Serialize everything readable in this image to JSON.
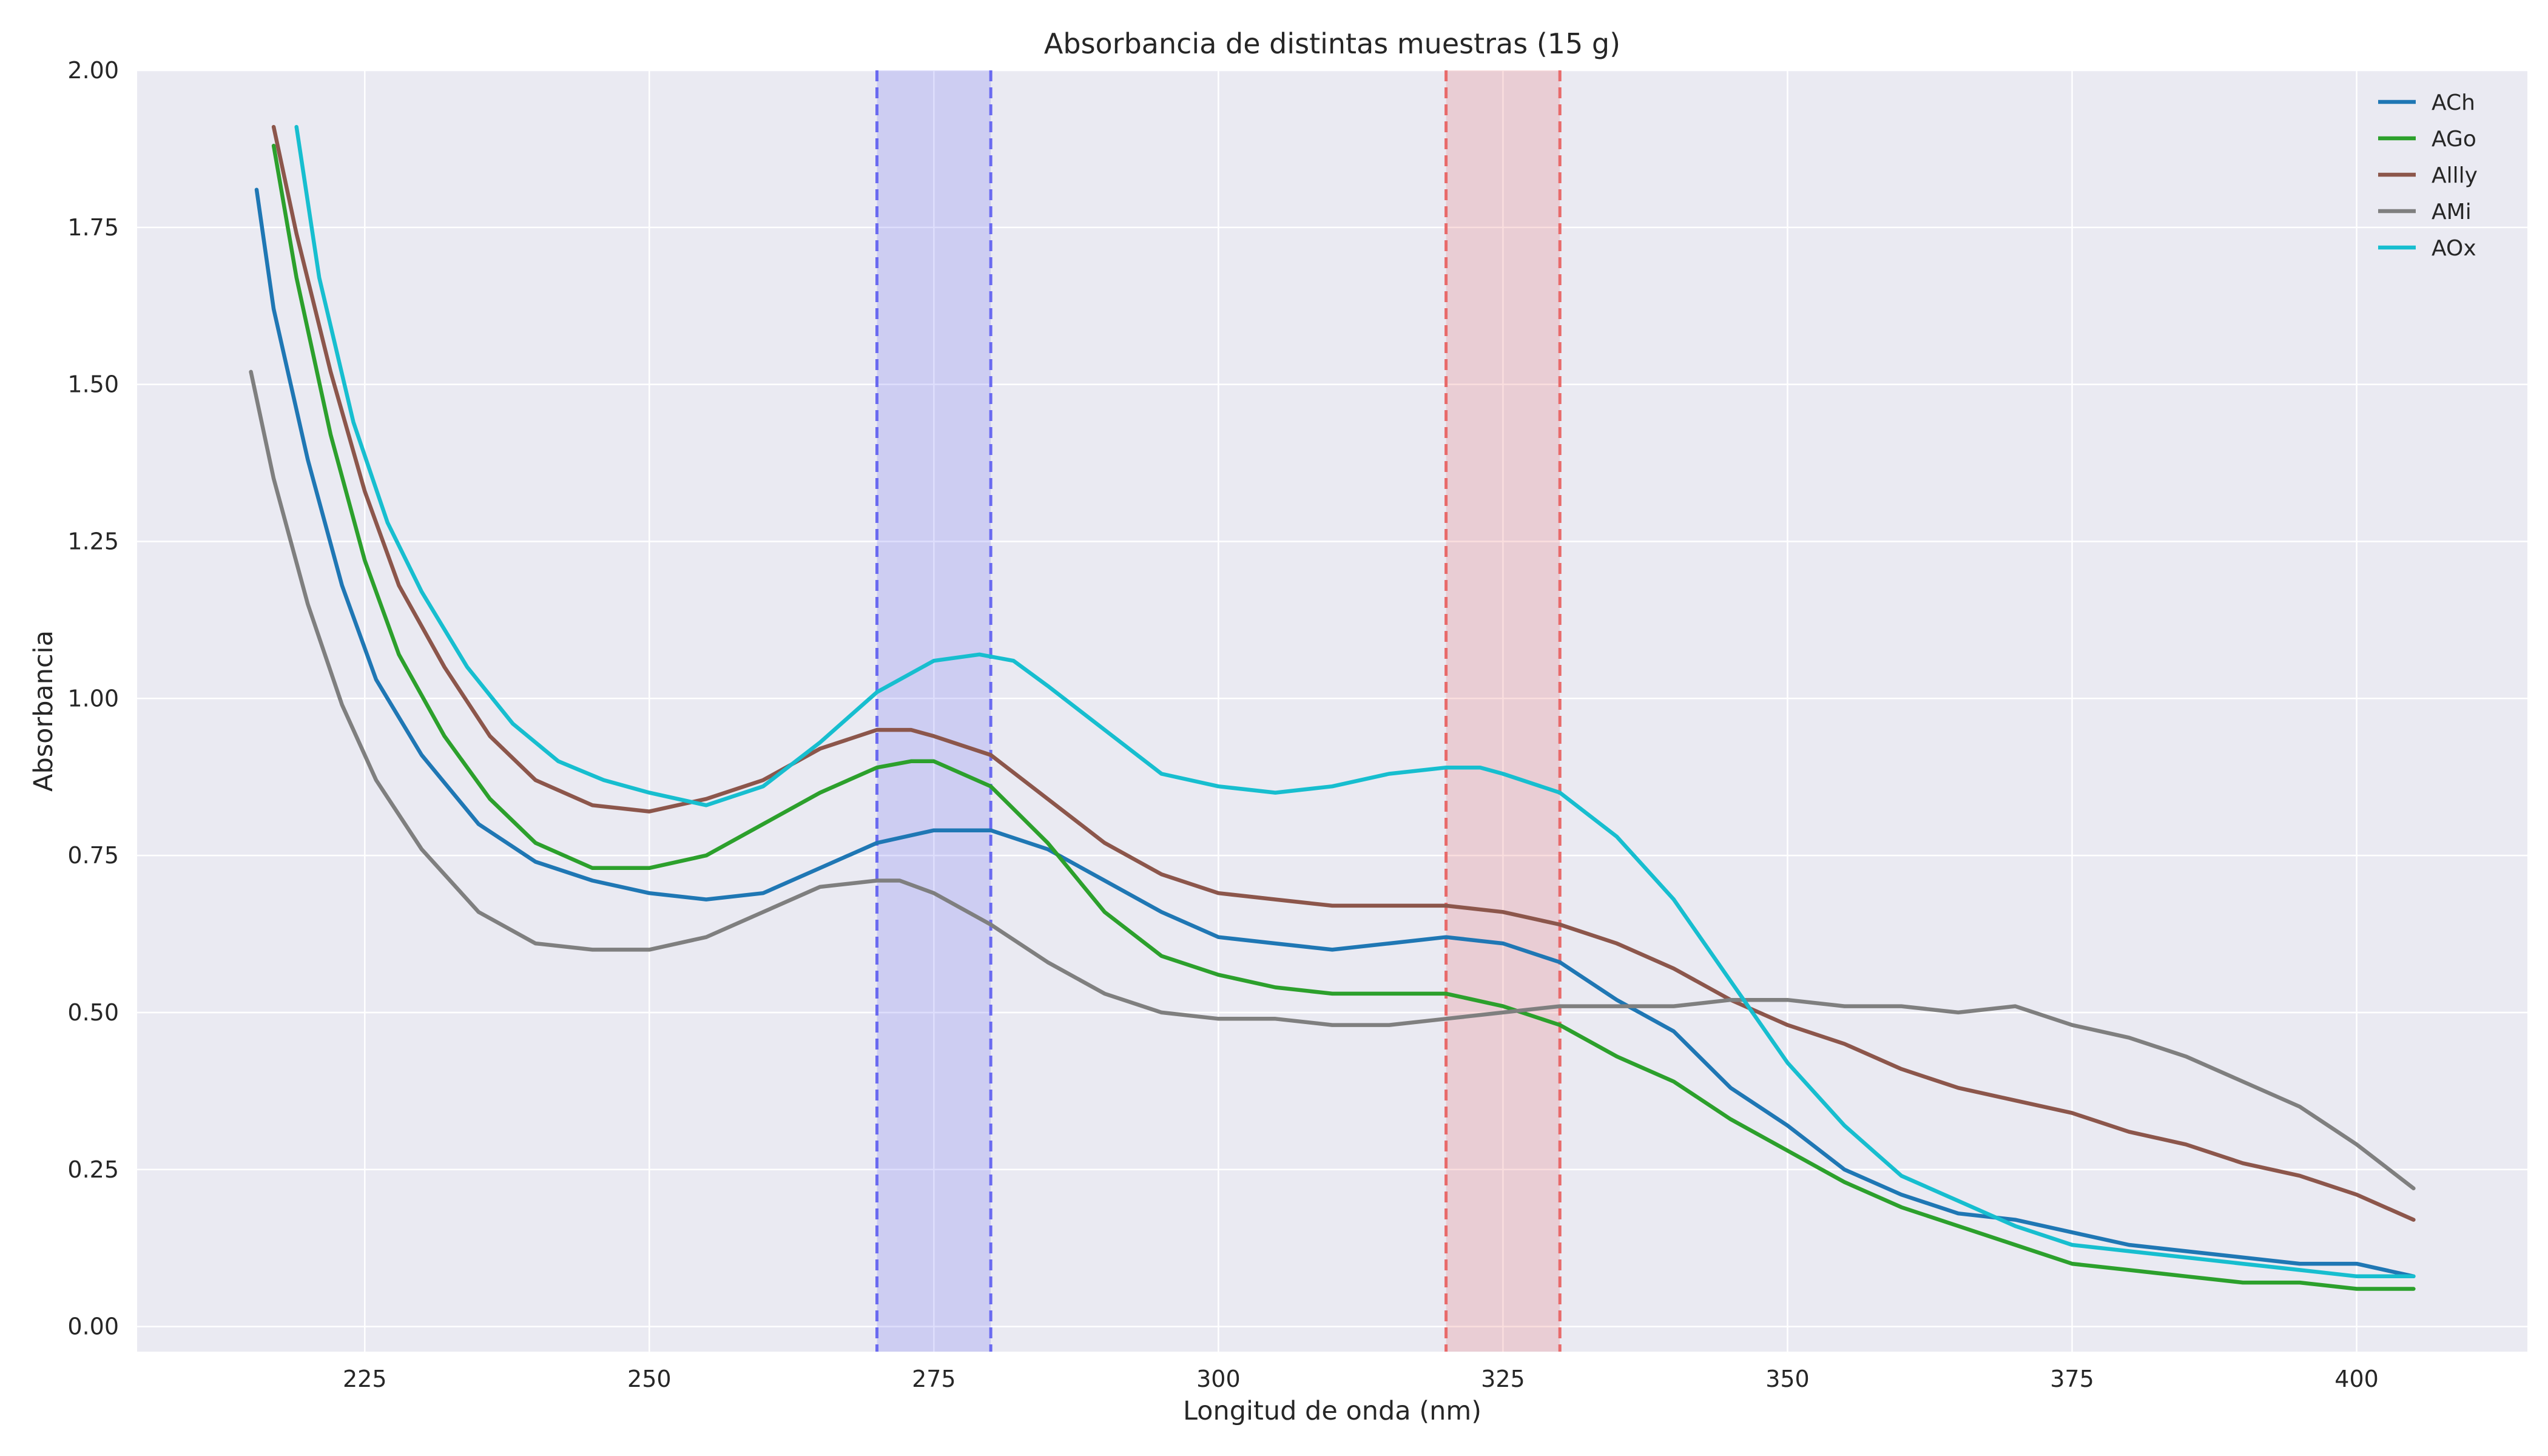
{
  "chart_data": {
    "type": "line",
    "title": "Absorbancia de distintas muestras (15 g)",
    "xlabel": "Longitud de onda (nm)",
    "ylabel": "Absorbancia",
    "xlim": [
      205,
      415
    ],
    "ylim": [
      -0.04,
      2.0
    ],
    "xticks": [
      225,
      250,
      275,
      300,
      325,
      350,
      375,
      400
    ],
    "xtick_labels": [
      "225",
      "250",
      "275",
      "300",
      "325",
      "350",
      "375",
      "400"
    ],
    "yticks": [
      0.0,
      0.25,
      0.5,
      0.75,
      1.0,
      1.25,
      1.5,
      1.75,
      2.0
    ],
    "ytick_labels": [
      "0.00",
      "0.25",
      "0.50",
      "0.75",
      "1.00",
      "1.25",
      "1.50",
      "1.75",
      "2.00"
    ],
    "grid": true,
    "legend_position": "top-right",
    "bands": [
      {
        "x0": 270,
        "x1": 280,
        "color": "#6a6af0"
      },
      {
        "x0": 320,
        "x1": 330,
        "color": "#e86a6a"
      }
    ],
    "series": [
      {
        "name": "ACh",
        "color": "#1f77b4",
        "x": [
          215.5,
          217,
          220,
          223,
          226,
          230,
          235,
          240,
          245,
          250,
          255,
          260,
          265,
          270,
          275,
          280,
          285,
          290,
          295,
          300,
          305,
          310,
          315,
          320,
          325,
          330,
          335,
          340,
          345,
          350,
          355,
          360,
          365,
          370,
          375,
          380,
          385,
          390,
          395,
          400,
          405
        ],
        "y": [
          1.81,
          1.62,
          1.38,
          1.18,
          1.03,
          0.91,
          0.8,
          0.74,
          0.71,
          0.69,
          0.68,
          0.69,
          0.73,
          0.77,
          0.79,
          0.79,
          0.76,
          0.71,
          0.66,
          0.62,
          0.61,
          0.6,
          0.61,
          0.62,
          0.61,
          0.58,
          0.52,
          0.47,
          0.38,
          0.32,
          0.25,
          0.21,
          0.18,
          0.17,
          0.15,
          0.13,
          0.12,
          0.11,
          0.1,
          0.1,
          0.08
        ]
      },
      {
        "name": "AGo",
        "color": "#2ca02c",
        "x": [
          217,
          219,
          222,
          225,
          228,
          232,
          236,
          240,
          245,
          250,
          255,
          260,
          265,
          270,
          273,
          275,
          280,
          285,
          290,
          295,
          300,
          305,
          310,
          315,
          320,
          325,
          330,
          335,
          340,
          345,
          350,
          355,
          360,
          365,
          370,
          375,
          380,
          385,
          390,
          395,
          400,
          405
        ],
        "y": [
          1.88,
          1.67,
          1.42,
          1.22,
          1.07,
          0.94,
          0.84,
          0.77,
          0.73,
          0.73,
          0.75,
          0.8,
          0.85,
          0.89,
          0.9,
          0.9,
          0.86,
          0.77,
          0.66,
          0.59,
          0.56,
          0.54,
          0.53,
          0.53,
          0.53,
          0.51,
          0.48,
          0.43,
          0.39,
          0.33,
          0.28,
          0.23,
          0.19,
          0.16,
          0.13,
          0.1,
          0.09,
          0.08,
          0.07,
          0.07,
          0.06,
          0.06
        ]
      },
      {
        "name": "Allly",
        "color": "#8c564b",
        "x": [
          217,
          219,
          222,
          225,
          228,
          232,
          236,
          240,
          245,
          250,
          255,
          260,
          265,
          270,
          273,
          275,
          280,
          285,
          290,
          295,
          300,
          305,
          310,
          315,
          320,
          325,
          330,
          335,
          340,
          345,
          350,
          355,
          360,
          365,
          370,
          375,
          380,
          385,
          390,
          395,
          400,
          405
        ],
        "y": [
          1.91,
          1.74,
          1.52,
          1.33,
          1.18,
          1.05,
          0.94,
          0.87,
          0.83,
          0.82,
          0.84,
          0.87,
          0.92,
          0.95,
          0.95,
          0.94,
          0.91,
          0.84,
          0.77,
          0.72,
          0.69,
          0.68,
          0.67,
          0.67,
          0.67,
          0.66,
          0.64,
          0.61,
          0.57,
          0.52,
          0.48,
          0.45,
          0.41,
          0.38,
          0.36,
          0.34,
          0.31,
          0.29,
          0.26,
          0.24,
          0.21,
          0.17
        ]
      },
      {
        "name": "AMi",
        "color": "#7f7f7f",
        "x": [
          215,
          217,
          220,
          223,
          226,
          230,
          235,
          240,
          245,
          250,
          255,
          260,
          265,
          270,
          272,
          275,
          280,
          285,
          290,
          295,
          300,
          305,
          310,
          315,
          320,
          325,
          330,
          335,
          340,
          345,
          350,
          355,
          360,
          365,
          370,
          375,
          380,
          385,
          390,
          395,
          400,
          405
        ],
        "y": [
          1.52,
          1.35,
          1.15,
          0.99,
          0.87,
          0.76,
          0.66,
          0.61,
          0.6,
          0.6,
          0.62,
          0.66,
          0.7,
          0.71,
          0.71,
          0.69,
          0.64,
          0.58,
          0.53,
          0.5,
          0.49,
          0.49,
          0.48,
          0.48,
          0.49,
          0.5,
          0.51,
          0.51,
          0.51,
          0.52,
          0.52,
          0.51,
          0.51,
          0.5,
          0.51,
          0.48,
          0.46,
          0.43,
          0.39,
          0.35,
          0.29,
          0.22
        ]
      },
      {
        "name": "AOx",
        "color": "#17becf",
        "x": [
          219,
          221,
          224,
          227,
          230,
          234,
          238,
          242,
          246,
          250,
          255,
          260,
          265,
          270,
          275,
          279,
          282,
          285,
          290,
          295,
          300,
          305,
          310,
          315,
          320,
          323,
          325,
          330,
          335,
          340,
          345,
          350,
          355,
          360,
          365,
          370,
          375,
          380,
          385,
          390,
          395,
          400,
          405
        ],
        "y": [
          1.91,
          1.67,
          1.44,
          1.28,
          1.17,
          1.05,
          0.96,
          0.9,
          0.87,
          0.85,
          0.83,
          0.86,
          0.93,
          1.01,
          1.06,
          1.07,
          1.06,
          1.02,
          0.95,
          0.88,
          0.86,
          0.85,
          0.86,
          0.88,
          0.89,
          0.89,
          0.88,
          0.85,
          0.78,
          0.68,
          0.55,
          0.42,
          0.32,
          0.24,
          0.2,
          0.16,
          0.13,
          0.12,
          0.11,
          0.1,
          0.09,
          0.08,
          0.08
        ]
      }
    ]
  }
}
